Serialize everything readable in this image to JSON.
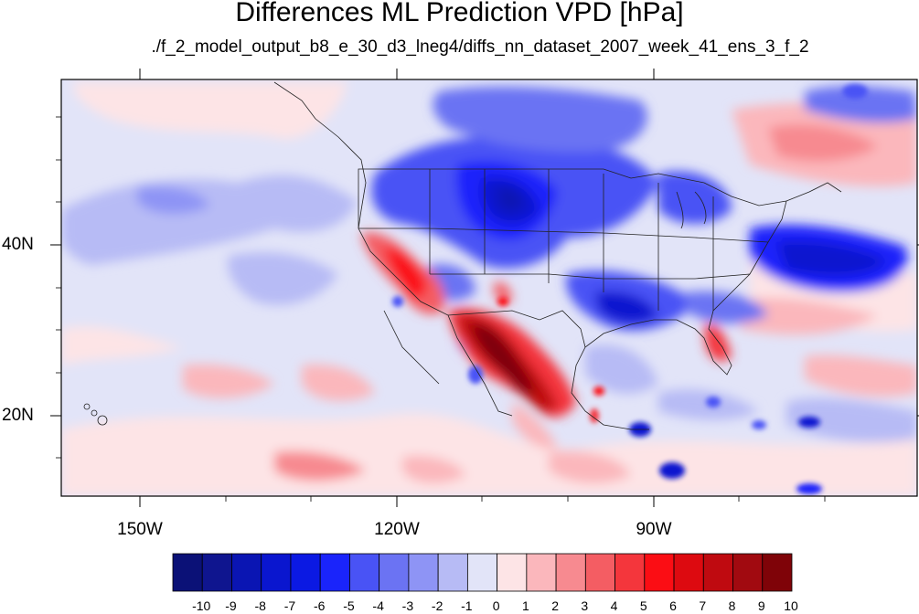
{
  "title": "Differences ML Prediction VPD [hPa]",
  "subtitle": "./f_2_model_output_b8_e_30_d3_lneg4/diffs_nn_dataset_2007_week_41_ens_3_f_2",
  "map": {
    "projection": "cylindrical-equidistant",
    "lon_range": [
      -160,
      -62
    ],
    "lat_range": [
      11,
      59
    ],
    "lon_ticks": [
      "150W",
      "120W",
      "90W"
    ],
    "lat_ticks": [
      "40N",
      "20N"
    ],
    "variable": "VPD difference",
    "units": "hPa"
  },
  "colorbar": {
    "labels": [
      "-10",
      "-9",
      "-8",
      "-7",
      "-6",
      "-5",
      "-4",
      "-3",
      "-2",
      "-1",
      "0",
      "1",
      "2",
      "3",
      "4",
      "5",
      "6",
      "7",
      "8",
      "9",
      "10"
    ],
    "colors": [
      "#0b1177",
      "#0f158f",
      "#0a15b3",
      "#0a16cf",
      "#0b19e3",
      "#1a24fb",
      "#4953f5",
      "#6b73f3",
      "#8e94f5",
      "#b7bbf5",
      "#e2e4f8",
      "#fde4e6",
      "#fbb7bc",
      "#f78a90",
      "#f45d63",
      "#f4363c",
      "#fb0d14",
      "#dd0a10",
      "#bf0a10",
      "#a10a10",
      "#7f0308"
    ]
  }
}
